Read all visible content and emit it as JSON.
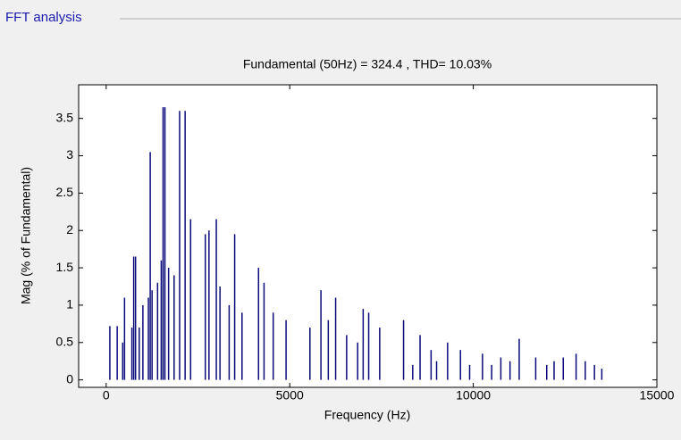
{
  "panel_title": "FFT analysis",
  "chart_data": {
    "type": "stem",
    "title": "Fundamental (50Hz) = 324.4 , THD= 10.03%",
    "xlabel": "Frequency (Hz)",
    "ylabel": "Mag (% of Fundamental)",
    "color": "#0a0a7a",
    "xlim": [
      -750,
      15000
    ],
    "ylim": [
      -0.1,
      3.95
    ],
    "xticks": [
      0,
      5000,
      10000,
      15000
    ],
    "yticks": [
      0,
      0.5,
      1,
      1.5,
      2,
      2.5,
      3,
      3.5
    ],
    "grid": false,
    "x": [
      100,
      300,
      450,
      500,
      700,
      750,
      800,
      900,
      1000,
      1150,
      1200,
      1250,
      1400,
      1500,
      1550,
      1600,
      1700,
      1850,
      2000,
      2150,
      2300,
      2700,
      2800,
      3000,
      3100,
      3350,
      3500,
      3700,
      4150,
      4300,
      4550,
      4900,
      5550,
      5850,
      6050,
      6250,
      6550,
      6850,
      7000,
      7150,
      7450,
      8100,
      8350,
      8550,
      8850,
      9000,
      9300,
      9650,
      9900,
      10250,
      10500,
      10750,
      11000,
      11250,
      11700,
      12000,
      12200,
      12450,
      12800,
      13050,
      13300,
      13500
    ],
    "values": [
      0.72,
      0.72,
      0.5,
      1.1,
      0.7,
      1.65,
      1.65,
      0.7,
      1.0,
      1.1,
      3.05,
      1.2,
      1.3,
      1.6,
      3.65,
      3.65,
      1.5,
      1.4,
      3.6,
      3.6,
      2.15,
      1.95,
      2.0,
      2.15,
      1.25,
      1.0,
      1.95,
      0.9,
      1.5,
      1.3,
      0.9,
      0.8,
      0.7,
      1.2,
      0.8,
      1.1,
      0.6,
      0.5,
      0.95,
      0.9,
      0.7,
      0.8,
      0.2,
      0.6,
      0.4,
      0.25,
      0.5,
      0.4,
      0.2,
      0.35,
      0.2,
      0.3,
      0.25,
      0.55,
      0.3,
      0.2,
      0.25,
      0.3,
      0.35,
      0.25,
      0.2,
      0.15
    ]
  }
}
